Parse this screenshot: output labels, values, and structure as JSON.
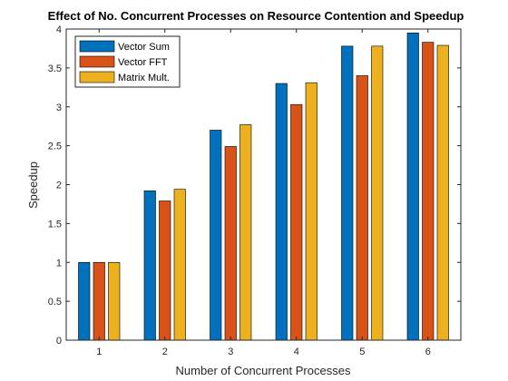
{
  "chart_data": {
    "type": "bar",
    "title": "Effect of No. Concurrent Processes on Resource Contention and Speedup",
    "xlabel": "Number of Concurrent Processes",
    "ylabel": "Speedup",
    "categories": [
      "1",
      "2",
      "3",
      "4",
      "5",
      "6"
    ],
    "ylim": [
      0,
      4
    ],
    "yticks": [
      "0",
      "0.5",
      "1",
      "1.5",
      "2",
      "2.5",
      "3",
      "3.5",
      "4"
    ],
    "grid": false,
    "legend_position": "top-left",
    "series": [
      {
        "name": "Vector Sum",
        "color": "#0072BD",
        "values": [
          1.0,
          1.92,
          2.7,
          3.3,
          3.78,
          3.95
        ]
      },
      {
        "name": "Vector FFT",
        "color": "#D95319",
        "values": [
          1.0,
          1.79,
          2.49,
          3.03,
          3.4,
          3.83
        ]
      },
      {
        "name": "Matrix Mult.",
        "color": "#EDB120",
        "values": [
          1.0,
          1.94,
          2.77,
          3.31,
          3.78,
          3.79
        ]
      }
    ]
  }
}
